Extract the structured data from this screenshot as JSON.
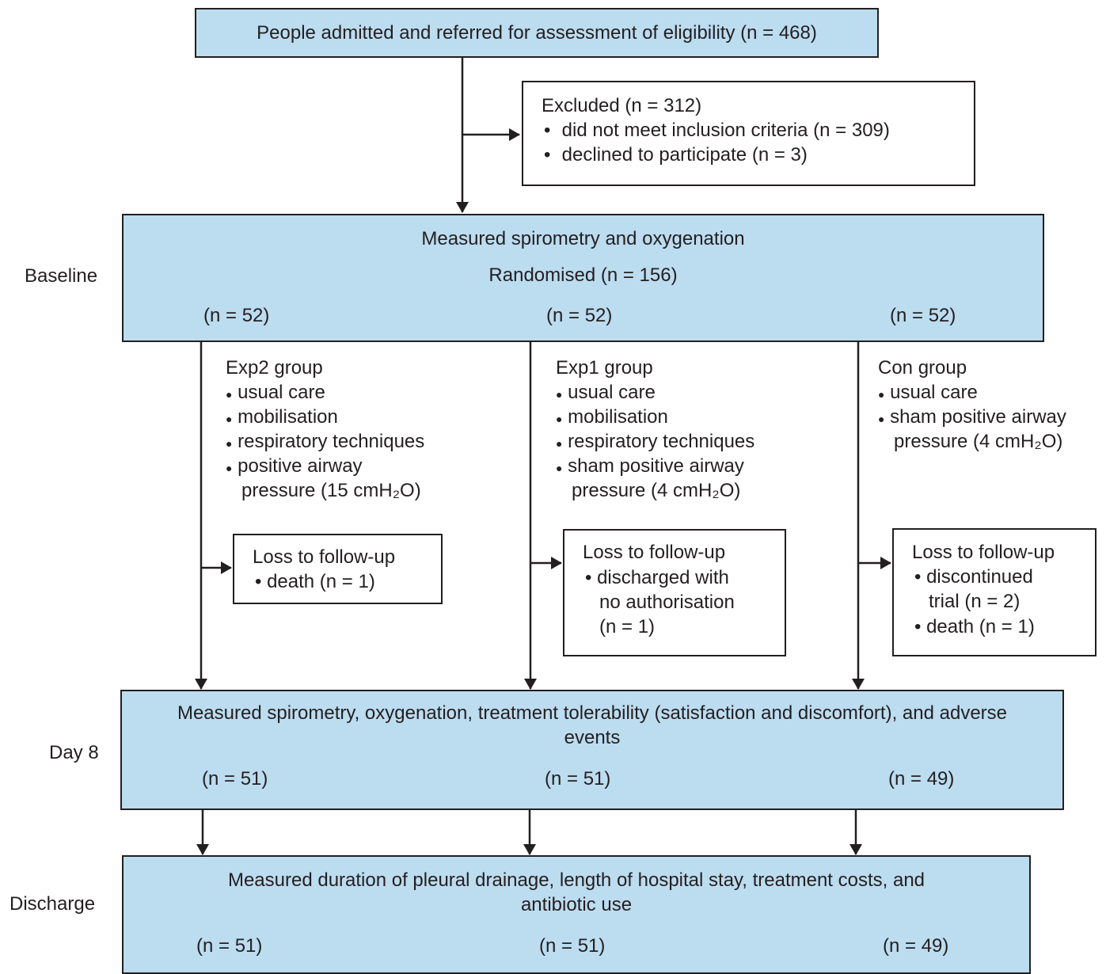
{
  "top": {
    "text": "People admitted and referred for assessment of eligibility (n = 468)"
  },
  "excluded": {
    "title": "Excluded (n = 312)",
    "items": [
      "did not meet inclusion criteria (n = 309)",
      "declined to participate (n = 3)"
    ]
  },
  "stages": {
    "baseline": "Baseline",
    "day8": "Day 8",
    "discharge": "Discharge"
  },
  "baseline_box": {
    "line1": "Measured spirometry and oxygenation",
    "line2": "Randomised (n = 156)",
    "n": [
      "(n = 52)",
      "(n = 52)",
      "(n = 52)"
    ]
  },
  "groups": [
    {
      "title": "Exp2 group",
      "items": [
        "usual care",
        "mobilisation",
        "respiratory techniques",
        "positive airway",
        "pressure (15 cmH₂O)"
      ]
    },
    {
      "title": "Exp1 group",
      "items": [
        "usual care",
        "mobilisation",
        "respiratory techniques",
        "sham positive airway",
        "pressure (4 cmH₂O)"
      ]
    },
    {
      "title": "Con group",
      "items": [
        "usual care",
        "sham positive airway",
        "pressure (4 cmH₂O)"
      ]
    }
  ],
  "loss": [
    {
      "title": "Loss to follow-up",
      "lines": [
        "• death (n = 1)"
      ]
    },
    {
      "title": "Loss to follow-up",
      "lines": [
        "• discharged with",
        "no authorisation",
        "(n = 1)"
      ]
    },
    {
      "title": "Loss to follow-up",
      "lines": [
        "• discontinued",
        "trial (n = 2)",
        "• death (n = 1)"
      ]
    }
  ],
  "day8_box": {
    "line1": "Measured spirometry, oxygenation, treatment tolerability (satisfaction and discomfort), and adverse",
    "line2": "events",
    "n": [
      "(n = 51)",
      "(n = 51)",
      "(n = 49)"
    ]
  },
  "discharge_box": {
    "line1": "Measured duration of pleural drainage, length of hospital stay, treatment costs, and",
    "line2": "antibiotic use",
    "n": [
      "(n = 51)",
      "(n = 51)",
      "(n = 49)"
    ]
  },
  "colors": {
    "box_fill": "#bcdcf0",
    "line": "#231f20"
  }
}
